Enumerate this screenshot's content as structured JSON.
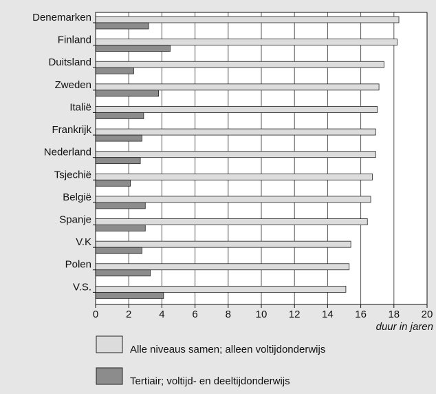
{
  "chart_data": {
    "type": "hbar",
    "categories": [
      "Denemarken",
      "Finland",
      "Duitsland",
      "Zweden",
      "Italië",
      "Frankrijk",
      "Nederland",
      "Tsjechië",
      "België",
      "Spanje",
      "V.K",
      "Polen",
      "V.S."
    ],
    "series": [
      {
        "name": "Alle niveaus samen; alleen voltijdonderwijs",
        "color": "#dcdcdc",
        "values": [
          18.3,
          18.2,
          17.4,
          17.1,
          17.0,
          16.9,
          16.9,
          16.7,
          16.6,
          16.4,
          15.4,
          15.3,
          15.1
        ]
      },
      {
        "name": "Tertiair; voltijd- en deeltijdonderwijs",
        "color": "#8c8c8c",
        "values": [
          3.2,
          4.5,
          2.3,
          3.8,
          2.9,
          2.8,
          2.7,
          2.1,
          3.0,
          3.0,
          2.8,
          3.3,
          4.1
        ]
      }
    ],
    "x_label": "duur in jaren",
    "xlim": [
      0,
      20
    ],
    "xticks": [
      0,
      2,
      4,
      6,
      8,
      10,
      12,
      14,
      16,
      18,
      20
    ],
    "grid": true
  }
}
